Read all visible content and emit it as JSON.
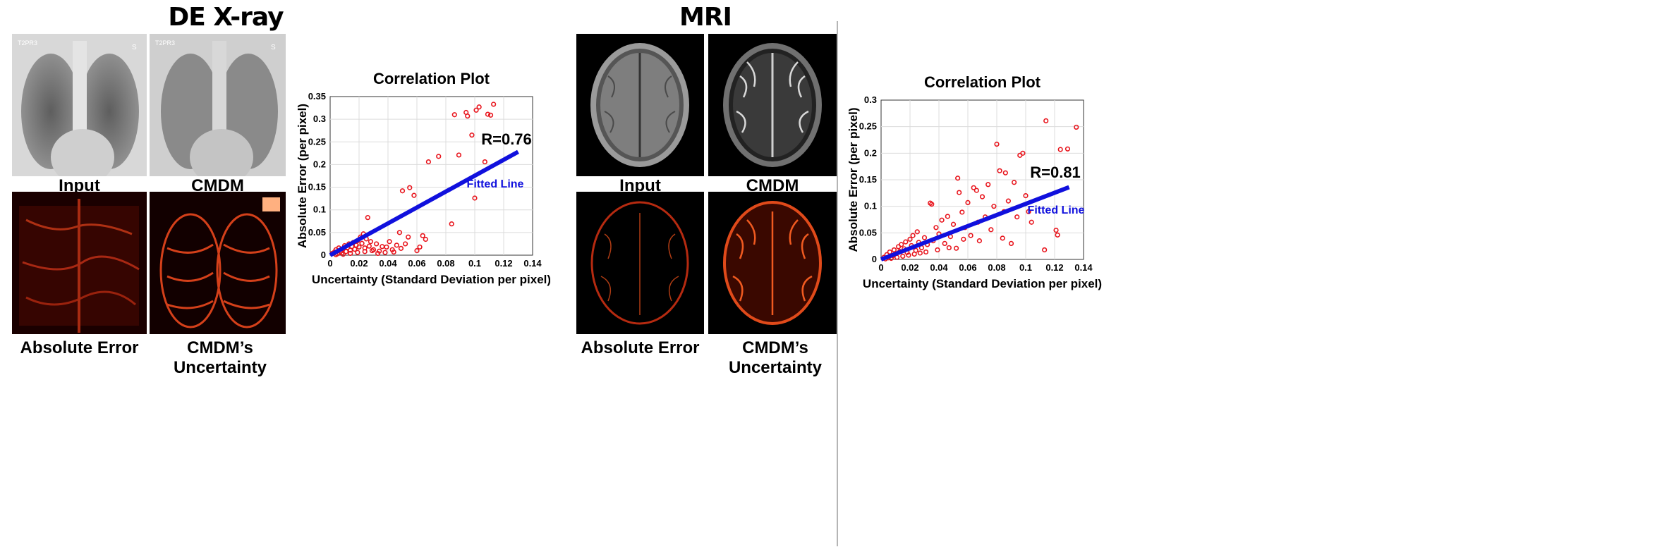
{
  "left": {
    "title": "DE X-ray",
    "captions": {
      "input": "Input",
      "cmdm": "CMDM",
      "abs_error": "Absolute Error",
      "uncertainty": "CMDM’s Uncertainty"
    }
  },
  "right": {
    "title": "MRI",
    "captions": {
      "input": "Input",
      "cmdm": "CMDM",
      "abs_error": "Absolute Error",
      "uncertainty": "CMDM’s Uncertainty"
    }
  },
  "colors": {
    "points": "#e8141c",
    "fit": "#1010dd",
    "grid": "#dcdcdc",
    "divider": "#b5b5b5"
  },
  "chart_data": [
    {
      "type": "scatter",
      "title": "Correlation Plot",
      "xlabel": "Uncertainty (Standard Deviation per pixel)",
      "ylabel": "Absolute Error (per pixel)",
      "xlim": [
        0,
        0.14
      ],
      "ylim": [
        0,
        0.35
      ],
      "xticks": [
        "0",
        "0.02",
        "0.04",
        "0.06",
        "0.08",
        "0.1",
        "0.12",
        "0.14"
      ],
      "yticks": [
        "0",
        "0.05",
        "0.1",
        "0.15",
        "0.2",
        "0.25",
        "0.3",
        "0.35"
      ],
      "grid": true,
      "annotation": "R=0.76",
      "fit_label": "Fitted Line",
      "fit_line": {
        "x": [
          0,
          0.13
        ],
        "y": [
          0,
          0.228
        ]
      },
      "points": [
        [
          0.0015,
          0.004
        ],
        [
          0.003,
          0.007
        ],
        [
          0.004,
          0.012
        ],
        [
          0.005,
          0.003
        ],
        [
          0.006,
          0.016
        ],
        [
          0.007,
          0.009
        ],
        [
          0.008,
          0.005
        ],
        [
          0.009,
          0.014
        ],
        [
          0.01,
          0.021
        ],
        [
          0.011,
          0.008
        ],
        [
          0.012,
          0.017
        ],
        [
          0.013,
          0.025
        ],
        [
          0.014,
          0.011
        ],
        [
          0.015,
          0.019
        ],
        [
          0.016,
          0.028
        ],
        [
          0.017,
          0.013
        ],
        [
          0.018,
          0.022
        ],
        [
          0.019,
          0.032
        ],
        [
          0.02,
          0.018
        ],
        [
          0.021,
          0.04
        ],
        [
          0.022,
          0.026
        ],
        [
          0.023,
          0.047
        ],
        [
          0.024,
          0.016
        ],
        [
          0.025,
          0.036
        ],
        [
          0.026,
          0.083
        ],
        [
          0.027,
          0.02
        ],
        [
          0.028,
          0.03
        ],
        [
          0.03,
          0.012
        ],
        [
          0.032,
          0.025
        ],
        [
          0.034,
          0.009
        ],
        [
          0.036,
          0.019
        ],
        [
          0.038,
          0.006
        ],
        [
          0.041,
          0.03
        ],
        [
          0.043,
          0.012
        ],
        [
          0.046,
          0.022
        ],
        [
          0.048,
          0.05
        ],
        [
          0.049,
          0.015
        ],
        [
          0.05,
          0.142
        ],
        [
          0.052,
          0.025
        ],
        [
          0.054,
          0.04
        ],
        [
          0.055,
          0.149
        ],
        [
          0.058,
          0.132
        ],
        [
          0.06,
          0.01
        ],
        [
          0.062,
          0.018
        ],
        [
          0.064,
          0.043
        ],
        [
          0.066,
          0.035
        ],
        [
          0.068,
          0.206
        ],
        [
          0.075,
          0.218
        ],
        [
          0.084,
          0.069
        ],
        [
          0.086,
          0.31
        ],
        [
          0.089,
          0.221
        ],
        [
          0.094,
          0.315
        ],
        [
          0.095,
          0.307
        ],
        [
          0.098,
          0.265
        ],
        [
          0.1,
          0.126
        ],
        [
          0.101,
          0.32
        ],
        [
          0.103,
          0.327
        ],
        [
          0.107,
          0.206
        ],
        [
          0.109,
          0.311
        ],
        [
          0.111,
          0.309
        ],
        [
          0.113,
          0.333
        ],
        [
          0.004,
          0.001
        ],
        [
          0.009,
          0.002
        ],
        [
          0.014,
          0.004
        ],
        [
          0.019,
          0.006
        ],
        [
          0.024,
          0.008
        ],
        [
          0.029,
          0.01
        ],
        [
          0.033,
          0.004
        ],
        [
          0.039,
          0.018
        ],
        [
          0.044,
          0.007
        ]
      ]
    },
    {
      "type": "scatter",
      "title": "Correlation Plot",
      "xlabel": "Uncertainty (Standard Deviation per pixel)",
      "ylabel": "Absolute Error  (per pixel)",
      "xlim": [
        0,
        0.14
      ],
      "ylim": [
        0,
        0.3
      ],
      "xticks": [
        "0",
        "0.02",
        "0.04",
        "0.06",
        "0.08",
        "0.1",
        "0.12",
        "0.14"
      ],
      "yticks": [
        "0",
        "0.05",
        "0.1",
        "0.15",
        "0.2",
        "0.25",
        "0.3"
      ],
      "grid": true,
      "annotation": "R=0.81",
      "fit_label": "Fitted Line",
      "fit_line": {
        "x": [
          0,
          0.13
        ],
        "y": [
          0,
          0.136
        ]
      },
      "points": [
        [
          0.002,
          0.004
        ],
        [
          0.004,
          0.009
        ],
        [
          0.005,
          0.003
        ],
        [
          0.006,
          0.014
        ],
        [
          0.008,
          0.007
        ],
        [
          0.009,
          0.018
        ],
        [
          0.01,
          0.011
        ],
        [
          0.012,
          0.024
        ],
        [
          0.013,
          0.015
        ],
        [
          0.014,
          0.028
        ],
        [
          0.016,
          0.02
        ],
        [
          0.017,
          0.033
        ],
        [
          0.018,
          0.013
        ],
        [
          0.02,
          0.038
        ],
        [
          0.021,
          0.026
        ],
        [
          0.022,
          0.045
        ],
        [
          0.024,
          0.017
        ],
        [
          0.025,
          0.052
        ],
        [
          0.026,
          0.032
        ],
        [
          0.028,
          0.022
        ],
        [
          0.03,
          0.041
        ],
        [
          0.032,
          0.028
        ],
        [
          0.034,
          0.106
        ],
        [
          0.035,
          0.104
        ],
        [
          0.036,
          0.035
        ],
        [
          0.038,
          0.06
        ],
        [
          0.04,
          0.048
        ],
        [
          0.042,
          0.074
        ],
        [
          0.044,
          0.03
        ],
        [
          0.046,
          0.081
        ],
        [
          0.048,
          0.043
        ],
        [
          0.05,
          0.066
        ],
        [
          0.052,
          0.021
        ],
        [
          0.053,
          0.153
        ],
        [
          0.054,
          0.126
        ],
        [
          0.056,
          0.089
        ],
        [
          0.058,
          0.06
        ],
        [
          0.06,
          0.107
        ],
        [
          0.062,
          0.045
        ],
        [
          0.064,
          0.135
        ],
        [
          0.066,
          0.13
        ],
        [
          0.068,
          0.035
        ],
        [
          0.07,
          0.118
        ],
        [
          0.072,
          0.08
        ],
        [
          0.074,
          0.141
        ],
        [
          0.076,
          0.056
        ],
        [
          0.078,
          0.1
        ],
        [
          0.08,
          0.217
        ],
        [
          0.082,
          0.167
        ],
        [
          0.084,
          0.04
        ],
        [
          0.086,
          0.163
        ],
        [
          0.088,
          0.11
        ],
        [
          0.09,
          0.03
        ],
        [
          0.092,
          0.145
        ],
        [
          0.094,
          0.08
        ],
        [
          0.096,
          0.196
        ],
        [
          0.098,
          0.2
        ],
        [
          0.1,
          0.12
        ],
        [
          0.102,
          0.09
        ],
        [
          0.104,
          0.07
        ],
        [
          0.113,
          0.018
        ],
        [
          0.114,
          0.261
        ],
        [
          0.121,
          0.055
        ],
        [
          0.122,
          0.046
        ],
        [
          0.124,
          0.207
        ],
        [
          0.129,
          0.208
        ],
        [
          0.135,
          0.249
        ],
        [
          0.003,
          0.001
        ],
        [
          0.007,
          0.002
        ],
        [
          0.011,
          0.004
        ],
        [
          0.015,
          0.006
        ],
        [
          0.019,
          0.008
        ],
        [
          0.023,
          0.01
        ],
        [
          0.027,
          0.012
        ],
        [
          0.031,
          0.014
        ],
        [
          0.039,
          0.018
        ],
        [
          0.047,
          0.022
        ],
        [
          0.057,
          0.038
        ],
        [
          0.067,
          0.07
        ],
        [
          0.085,
          0.09
        ]
      ]
    }
  ]
}
